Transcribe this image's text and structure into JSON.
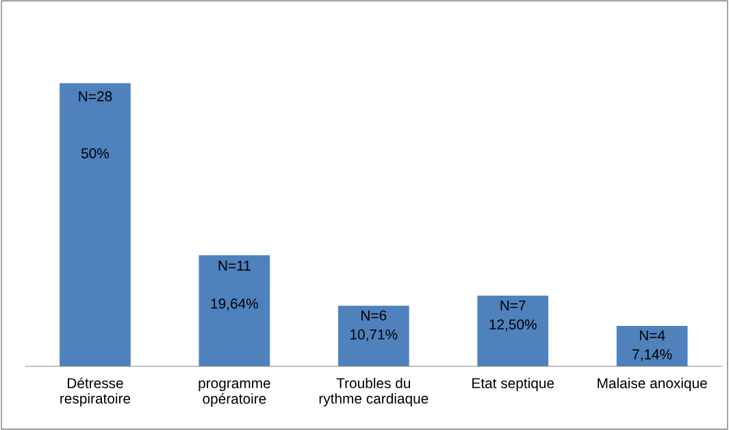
{
  "chart_data": {
    "type": "bar",
    "categories": [
      "Détresse\nrespiratoire",
      "programme\nopératoire",
      "Troubles du\nrythme cardiaque",
      "Etat septique",
      "Malaise anoxique"
    ],
    "values": [
      50,
      19.64,
      10.71,
      12.5,
      7.14
    ],
    "value_labels": [
      "N=28\n\n\n50%",
      "N=11\n\n19,64%",
      "N=6\n10,71%",
      "N=7\n12,50%",
      "N=4\n7,14%"
    ],
    "color": "#4f81bd",
    "grid": false,
    "legend": false
  }
}
